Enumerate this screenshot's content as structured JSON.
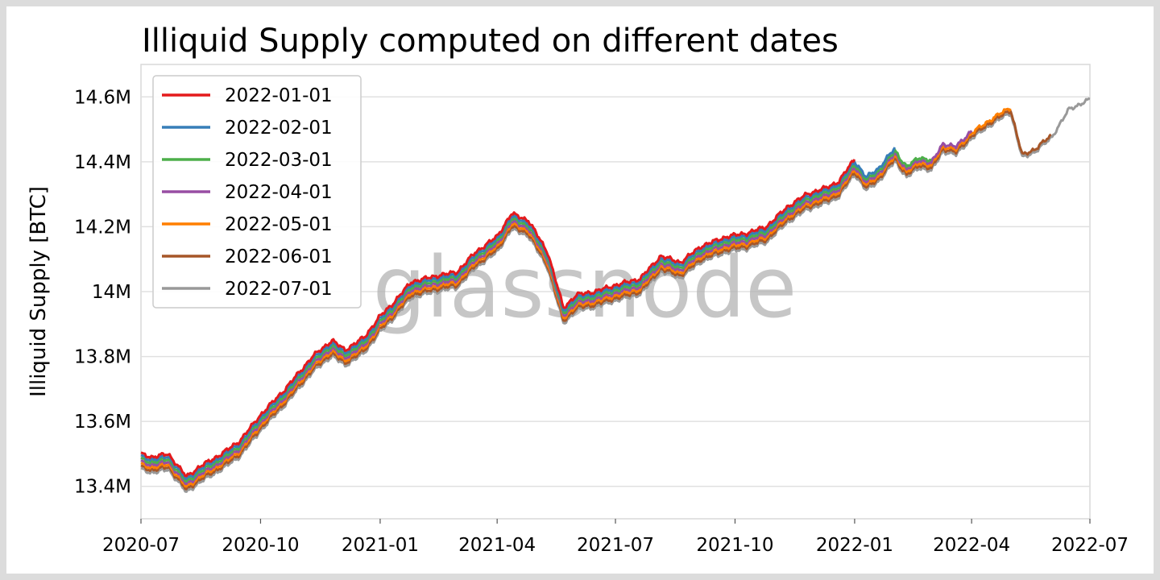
{
  "chart_data": {
    "type": "line",
    "title": "Illiquid Supply computed on different dates",
    "ylabel": "Illiquid Supply [BTC]",
    "xlabel": "",
    "watermark": "glassnode",
    "x_range": [
      "2020-07-01",
      "2022-07-01"
    ],
    "x_ticks": [
      {
        "date": "2020-07-01",
        "label": "2020-07"
      },
      {
        "date": "2020-10-01",
        "label": "2020-10"
      },
      {
        "date": "2021-01-01",
        "label": "2021-01"
      },
      {
        "date": "2021-04-01",
        "label": "2021-04"
      },
      {
        "date": "2021-07-01",
        "label": "2021-07"
      },
      {
        "date": "2021-10-01",
        "label": "2021-10"
      },
      {
        "date": "2022-01-01",
        "label": "2022-01"
      },
      {
        "date": "2022-04-01",
        "label": "2022-04"
      },
      {
        "date": "2022-07-01",
        "label": "2022-07"
      }
    ],
    "ylim": [
      13.3,
      14.7
    ],
    "y_unit": "M",
    "y_ticks": [
      {
        "value": 13.4,
        "label": "13.4M"
      },
      {
        "value": 13.6,
        "label": "13.6M"
      },
      {
        "value": 13.8,
        "label": "13.8M"
      },
      {
        "value": 14.0,
        "label": "14M"
      },
      {
        "value": 14.2,
        "label": "14.2M"
      },
      {
        "value": 14.4,
        "label": "14.4M"
      },
      {
        "value": 14.6,
        "label": "14.6M"
      }
    ],
    "grid": true,
    "legend_position": "top-left",
    "base_curve": [
      [
        "2020-07-01",
        13.5
      ],
      [
        "2020-07-10",
        13.49
      ],
      [
        "2020-07-22",
        13.5
      ],
      [
        "2020-08-05",
        13.43
      ],
      [
        "2020-08-15",
        13.46
      ],
      [
        "2020-09-01",
        13.5
      ],
      [
        "2020-09-15",
        13.54
      ],
      [
        "2020-10-01",
        13.62
      ],
      [
        "2020-10-20",
        13.7
      ],
      [
        "2020-11-10",
        13.8
      ],
      [
        "2020-11-25",
        13.85
      ],
      [
        "2020-12-05",
        13.82
      ],
      [
        "2020-12-20",
        13.86
      ],
      [
        "2020-12-31",
        13.92
      ],
      [
        "2021-01-10",
        13.96
      ],
      [
        "2021-01-25",
        14.03
      ],
      [
        "2021-02-15",
        14.05
      ],
      [
        "2021-03-01",
        14.06
      ],
      [
        "2021-03-15",
        14.12
      ],
      [
        "2021-04-01",
        14.17
      ],
      [
        "2021-04-12",
        14.24
      ],
      [
        "2021-04-25",
        14.22
      ],
      [
        "2021-05-10",
        14.12
      ],
      [
        "2021-05-22",
        13.95
      ],
      [
        "2021-06-01",
        13.99
      ],
      [
        "2021-06-15",
        14.0
      ],
      [
        "2021-07-01",
        14.02
      ],
      [
        "2021-07-20",
        14.04
      ],
      [
        "2021-08-05",
        14.11
      ],
      [
        "2021-08-20",
        14.09
      ],
      [
        "2021-09-05",
        14.14
      ],
      [
        "2021-09-25",
        14.17
      ],
      [
        "2021-10-10",
        14.18
      ],
      [
        "2021-10-25",
        14.2
      ],
      [
        "2021-11-10",
        14.26
      ],
      [
        "2021-11-25",
        14.3
      ],
      [
        "2021-12-10",
        14.32
      ],
      [
        "2021-12-20",
        14.34
      ],
      [
        "2022-01-01",
        14.41
      ],
      [
        "2022-01-10",
        14.36
      ],
      [
        "2022-01-20",
        14.39
      ],
      [
        "2022-02-01",
        14.45
      ],
      [
        "2022-02-10",
        14.4
      ],
      [
        "2022-02-20",
        14.43
      ],
      [
        "2022-03-01",
        14.42
      ],
      [
        "2022-03-10",
        14.48
      ],
      [
        "2022-03-20",
        14.47
      ],
      [
        "2022-04-01",
        14.52
      ],
      [
        "2022-04-15",
        14.56
      ],
      [
        "2022-05-01",
        14.6
      ],
      [
        "2022-05-10",
        14.46
      ],
      [
        "2022-05-20",
        14.48
      ],
      [
        "2022-06-01",
        14.52
      ],
      [
        "2022-06-15",
        14.61
      ],
      [
        "2022-07-01",
        14.64
      ]
    ],
    "series": [
      {
        "name": "2022-01-01",
        "color": "#e41a1c",
        "end": "2022-01-01",
        "offset": 0.0
      },
      {
        "name": "2022-02-01",
        "color": "#377eb8",
        "end": "2022-02-01",
        "offset": -0.008
      },
      {
        "name": "2022-03-01",
        "color": "#4daf4a",
        "end": "2022-03-01",
        "offset": -0.016
      },
      {
        "name": "2022-04-01",
        "color": "#984ea3",
        "end": "2022-04-01",
        "offset": -0.024
      },
      {
        "name": "2022-05-01",
        "color": "#ff7f00",
        "end": "2022-05-01",
        "offset": -0.032
      },
      {
        "name": "2022-06-01",
        "color": "#a65628",
        "end": "2022-06-01",
        "offset": -0.04
      },
      {
        "name": "2022-07-01",
        "color": "#999999",
        "end": "2022-07-01",
        "offset": -0.048
      }
    ]
  }
}
